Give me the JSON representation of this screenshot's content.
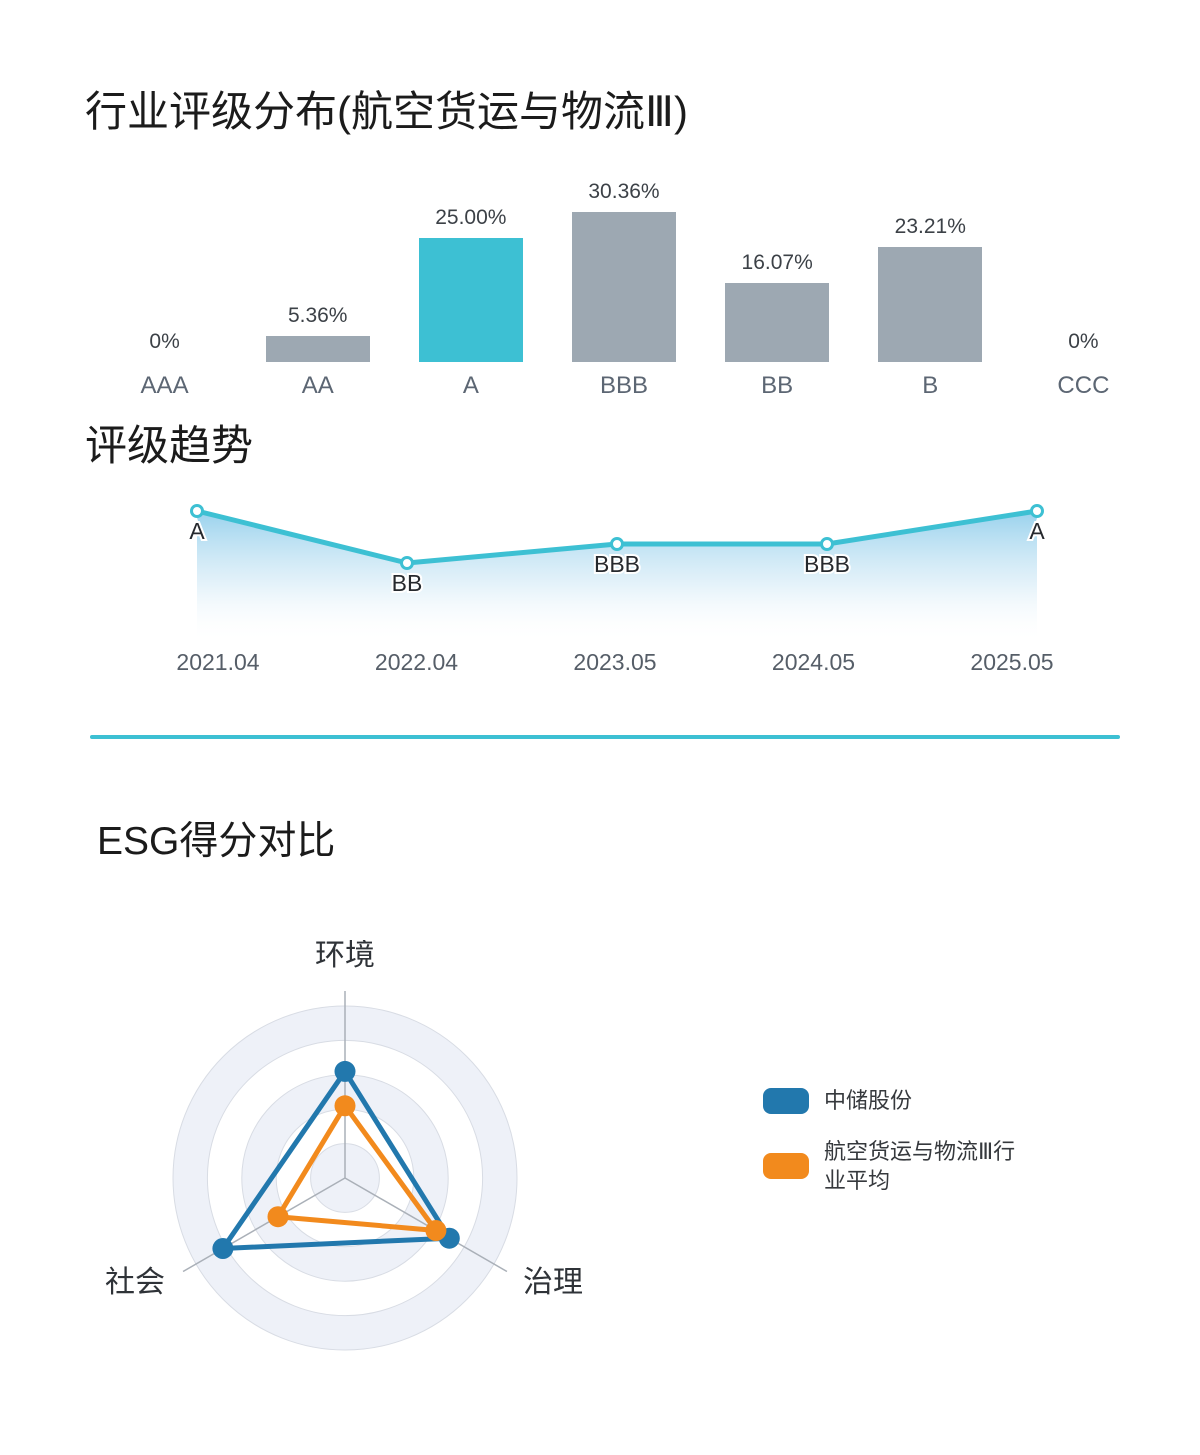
{
  "sections": {
    "rating_distribution": {
      "title": "行业评级分布(航空货运与物流Ⅲ)"
    },
    "rating_trend": {
      "title": "评级趋势"
    },
    "esg_comparison": {
      "title": "ESG得分对比"
    }
  },
  "chart_data": [
    {
      "type": "bar",
      "title": "行业评级分布(航空货运与物流Ⅲ)",
      "categories": [
        "AAA",
        "AA",
        "A",
        "BBB",
        "BB",
        "B",
        "CCC"
      ],
      "values": [
        0,
        5.36,
        25.0,
        30.36,
        16.07,
        23.21,
        0
      ],
      "value_labels": [
        "0%",
        "5.36%",
        "25.00%",
        "30.36%",
        "16.07%",
        "23.21%",
        "0%"
      ],
      "highlight_index": 2,
      "bar_color": "#9da8b2",
      "highlight_color": "#3dc0d3",
      "ylim": [
        0,
        32
      ],
      "grid": false,
      "legend_position": "none"
    },
    {
      "type": "line",
      "title": "评级趋势",
      "x": [
        "2021.04",
        "2022.04",
        "2023.05",
        "2024.05",
        "2025.05"
      ],
      "values": [
        "A",
        "BB",
        "BBB",
        "BBB",
        "A"
      ],
      "rating_axis": [
        "CCC",
        "B",
        "BB",
        "BBB",
        "A",
        "AA",
        "AAA"
      ],
      "line_color": "#3dc0d3",
      "marker": "hollow-circle",
      "area_fill": "vertical gradient light-blue fading to white",
      "grid": false
    },
    {
      "type": "radar",
      "title": "ESG得分对比",
      "axes": [
        "环境",
        "治理",
        "社会"
      ],
      "max": 100,
      "rings": 5,
      "series": [
        {
          "name": "中储股份",
          "color": "#2278ad",
          "values": [
            62,
            70,
            82
          ]
        },
        {
          "name": "航空货运与物流Ⅲ行业平均",
          "color": "#f28a1d",
          "values": [
            42,
            61,
            45
          ]
        }
      ],
      "legend_position": "right"
    }
  ],
  "legend": {
    "items": [
      {
        "label": "中储股份",
        "color": "#2278ad"
      },
      {
        "label": "航空货运与物流Ⅲ行业平均",
        "color": "#f28a1d"
      }
    ]
  },
  "colors": {
    "teal": "#3dc0d3",
    "bar_gray": "#9da8b2",
    "divider": "#3dc0d3",
    "series_blue": "#2278ad",
    "series_orange": "#f28a1d"
  }
}
